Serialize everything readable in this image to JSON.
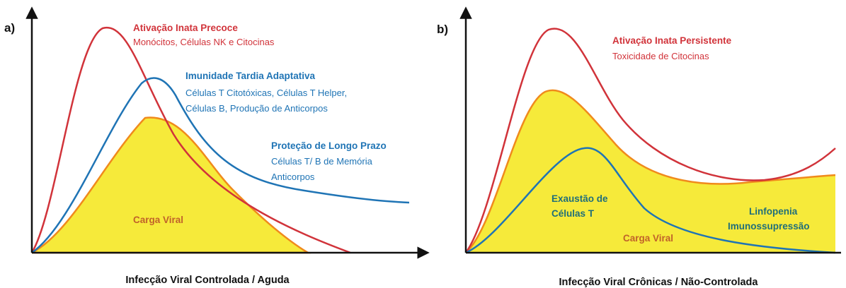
{
  "colors": {
    "red": "#d1333a",
    "blue": "#1f74b5",
    "orange": "#f08a1c",
    "yellow_fill": "#f6ea3a",
    "axis": "#111111",
    "viral_text": "#c0622a",
    "green_text": "#1f6e7a"
  },
  "panel_a": {
    "letter": "a)",
    "caption": "Infecção Viral Controlada / Aguda",
    "innate": {
      "title": "Ativação Inata Precoce",
      "subtitle": "Monócitos, Células NK e Citocinas"
    },
    "adaptive": {
      "title": "Imunidade Tardia Adaptativa",
      "lines": [
        "Células T Citotóxicas, Células T Helper,",
        "Células B, Produção de Anticorpos"
      ]
    },
    "longterm": {
      "title": "Proteção de Longo Prazo",
      "lines": [
        "Células T/ B de Memória",
        "Anticorpos"
      ]
    },
    "viral_load": "Carga Viral"
  },
  "panel_b": {
    "letter": "b)",
    "caption": "Infecção Viral Crônicas / Não-Controlada",
    "innate": {
      "title": "Ativação Inata Persistente",
      "subtitle": "Toxicidade de Citocinas"
    },
    "exhaustion": {
      "lines": [
        "Exaustão de",
        "Células T"
      ]
    },
    "lymphopenia": {
      "lines": [
        "Linfopenia",
        "Imunossupressão"
      ]
    },
    "viral_load": "Carga Viral"
  }
}
